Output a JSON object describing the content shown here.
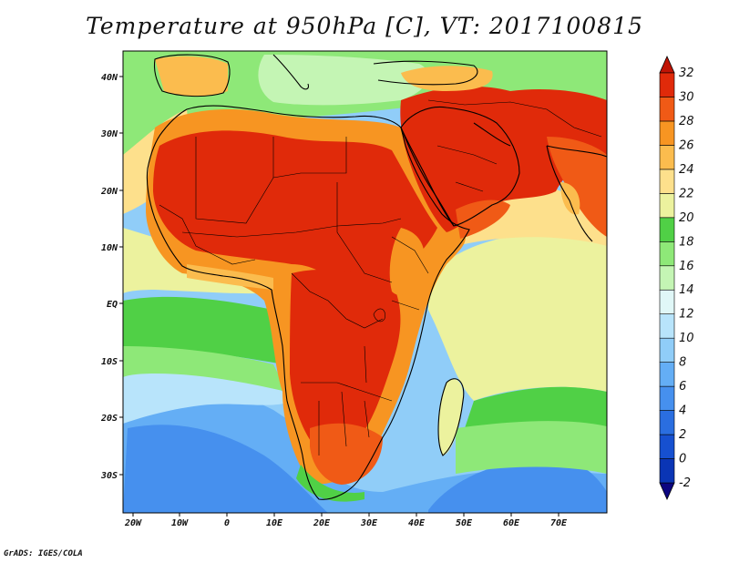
{
  "title": "Temperature at 950hPa [C], VT: 2017100815",
  "credit": "GrADS: IGES/COLA",
  "map": {
    "variable": "Temperature",
    "level": "950hPa",
    "units": "C",
    "valid_time": "2017100815",
    "region": "Africa, Middle East and South Asia",
    "lon_range": [
      -22,
      80
    ],
    "lat_range": [
      -36,
      45
    ],
    "lat_labels": [
      "40N",
      "30N",
      "20N",
      "10N",
      "EQ",
      "10S",
      "20S",
      "30S"
    ],
    "lon_labels": [
      "20W",
      "10W",
      "0",
      "10E",
      "20E",
      "30E",
      "40E",
      "50E",
      "60E",
      "70E"
    ]
  },
  "colorbar": {
    "levels": [
      "-2",
      "0",
      "2",
      "4",
      "6",
      "8",
      "10",
      "12",
      "14",
      "16",
      "18",
      "20",
      "22",
      "24",
      "26",
      "28",
      "30",
      "32"
    ],
    "colors": [
      "#0c0580",
      "#0a35b5",
      "#1650d0",
      "#2a6ee0",
      "#4690ee",
      "#64aef5",
      "#90cdf8",
      "#b8e4fb",
      "#e0f7f7",
      "#c4f5b4",
      "#8ee878",
      "#50d046",
      "#ecf29e",
      "#fde08c",
      "#fbbc4e",
      "#f79522",
      "#f05a16",
      "#e02a0a",
      "#c01405"
    ]
  }
}
